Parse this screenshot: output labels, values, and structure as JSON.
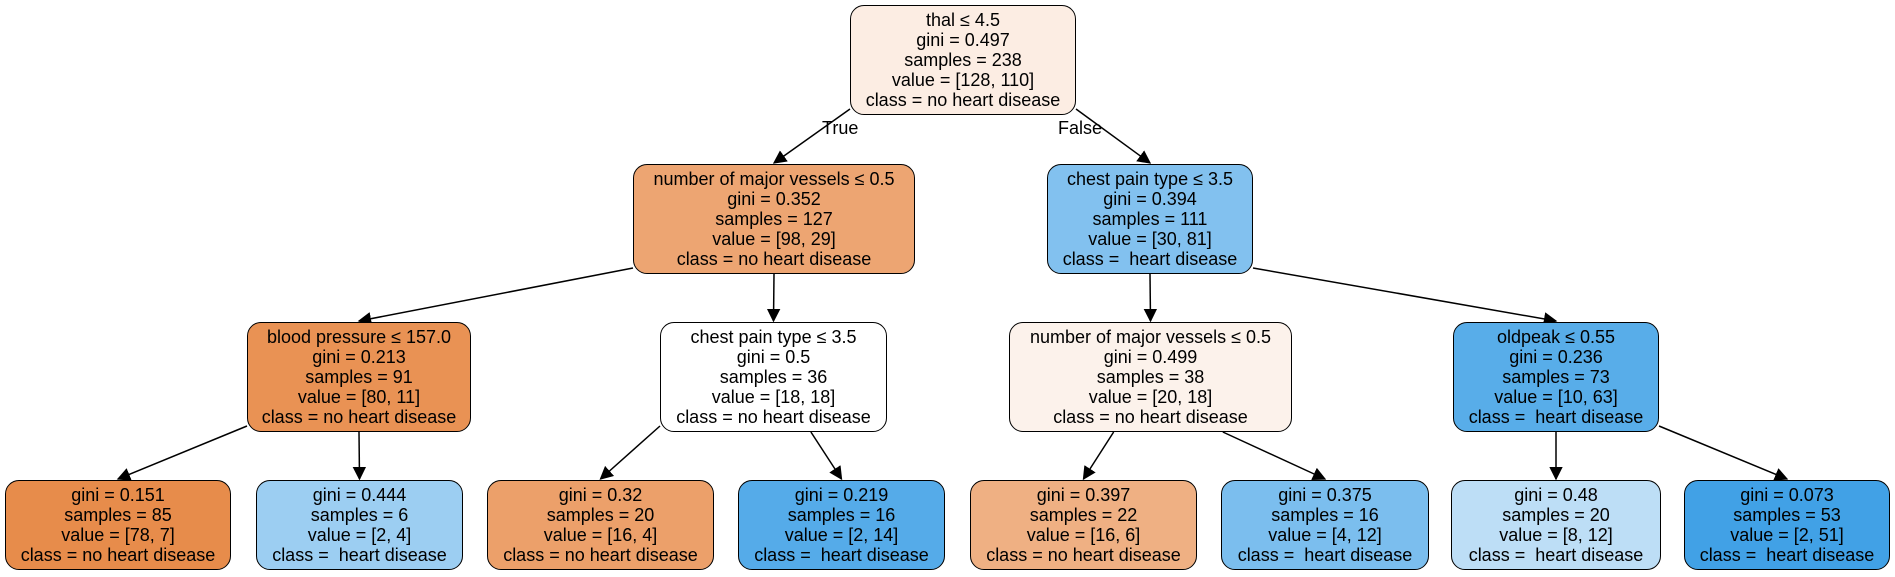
{
  "edge_labels": {
    "true_label": "True",
    "false_label": "False"
  },
  "nodes": [
    {
      "id": "n0",
      "split": "thal ≤ 4.5",
      "gini": "gini = 0.497",
      "samples": "samples = 238",
      "value": "value = [128, 110]",
      "class": "class = no heart disease",
      "fill": "#fcede3"
    },
    {
      "id": "n1",
      "split": "number of major vessels ≤ 0.5",
      "gini": "gini = 0.352",
      "samples": "samples = 127",
      "value": "value = [98, 29]",
      "class": "class = no heart disease",
      "fill": "#eda572"
    },
    {
      "id": "n2",
      "split": "chest pain type ≤ 3.5",
      "gini": "gini = 0.394",
      "samples": "samples = 111",
      "value": "value = [30, 81]",
      "class": "class =  heart disease",
      "fill": "#82c1ef"
    },
    {
      "id": "n3",
      "split": "blood pressure ≤ 157.0",
      "gini": "gini = 0.213",
      "samples": "samples = 91",
      "value": "value = [80, 11]",
      "class": "class = no heart disease",
      "fill": "#e99254"
    },
    {
      "id": "n4",
      "split": "chest pain type ≤ 3.5",
      "gini": "gini = 0.5",
      "samples": "samples = 36",
      "value": "value = [18, 18]",
      "class": "class = no heart disease",
      "fill": "#ffffff"
    },
    {
      "id": "n5",
      "split": "number of major vessels ≤ 0.5",
      "gini": "gini = 0.499",
      "samples": "samples = 38",
      "value": "value = [20, 18]",
      "class": "class = no heart disease",
      "fill": "#fcf2eb"
    },
    {
      "id": "n6",
      "split": "oldpeak ≤ 0.55",
      "gini": "gini = 0.236",
      "samples": "samples = 73",
      "value": "value = [10, 63]",
      "class": "class =  heart disease",
      "fill": "#58ade9"
    },
    {
      "id": "n7",
      "split": "",
      "gini": "gini = 0.151",
      "samples": "samples = 85",
      "value": "value = [78, 7]",
      "class": "class = no heart disease",
      "fill": "#e78c4b"
    },
    {
      "id": "n8",
      "split": "",
      "gini": "gini = 0.444",
      "samples": "samples = 6",
      "value": "value = [2, 4]",
      "class": "class =  heart disease",
      "fill": "#9ccef2"
    },
    {
      "id": "n9",
      "split": "",
      "gini": "gini = 0.32",
      "samples": "samples = 20",
      "value": "value = [16, 4]",
      "class": "class = no heart disease",
      "fill": "#eca06a"
    },
    {
      "id": "n10",
      "split": "",
      "gini": "gini = 0.219",
      "samples": "samples = 16",
      "value": "value = [2, 14]",
      "class": "class =  heart disease",
      "fill": "#55abe9"
    },
    {
      "id": "n11",
      "split": "",
      "gini": "gini = 0.397",
      "samples": "samples = 22",
      "value": "value = [16, 6]",
      "class": "class = no heart disease",
      "fill": "#efb083"
    },
    {
      "id": "n12",
      "split": "",
      "gini": "gini = 0.375",
      "samples": "samples = 16",
      "value": "value = [4, 12]",
      "class": "class =  heart disease",
      "fill": "#7bbeee"
    },
    {
      "id": "n13",
      "split": "",
      "gini": "gini = 0.48",
      "samples": "samples = 20",
      "value": "value = [8, 12]",
      "class": "class =  heart disease",
      "fill": "#bddef6"
    },
    {
      "id": "n14",
      "split": "",
      "gini": "gini = 0.073",
      "samples": "samples = 53",
      "value": "value = [2, 51]",
      "class": "class =  heart disease",
      "fill": "#41a1e6"
    }
  ],
  "edges": [
    [
      "n0",
      "n1"
    ],
    [
      "n0",
      "n2"
    ],
    [
      "n1",
      "n3"
    ],
    [
      "n1",
      "n4"
    ],
    [
      "n2",
      "n5"
    ],
    [
      "n2",
      "n6"
    ],
    [
      "n3",
      "n7"
    ],
    [
      "n3",
      "n8"
    ],
    [
      "n4",
      "n9"
    ],
    [
      "n4",
      "n10"
    ],
    [
      "n5",
      "n11"
    ],
    [
      "n5",
      "n12"
    ],
    [
      "n6",
      "n13"
    ],
    [
      "n6",
      "n14"
    ]
  ]
}
